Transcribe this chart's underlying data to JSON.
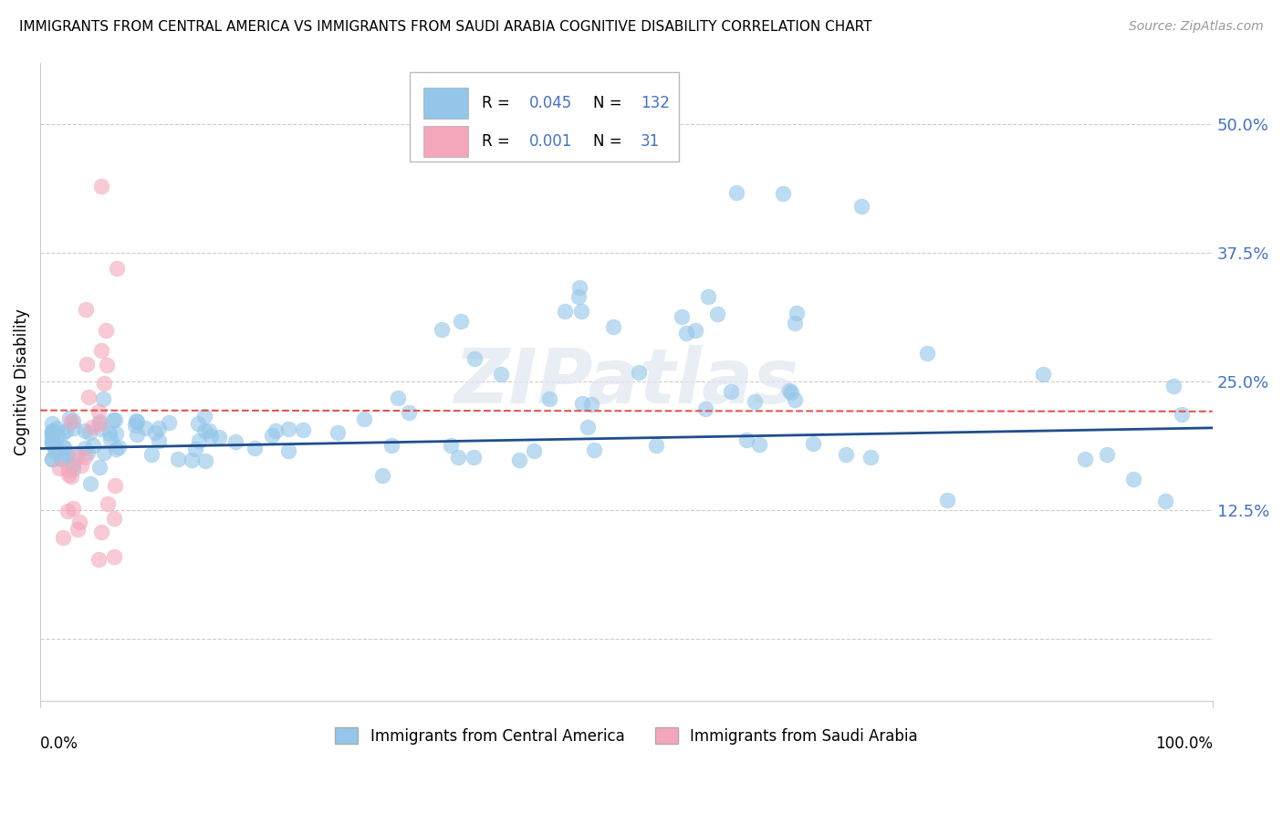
{
  "title": "IMMIGRANTS FROM CENTRAL AMERICA VS IMMIGRANTS FROM SAUDI ARABIA COGNITIVE DISABILITY CORRELATION CHART",
  "source": "Source: ZipAtlas.com",
  "ylabel": "Cognitive Disability",
  "y_ticks": [
    0.0,
    0.125,
    0.25,
    0.375,
    0.5
  ],
  "y_tick_labels": [
    "",
    "12.5%",
    "25.0%",
    "37.5%",
    "50.0%"
  ],
  "x_lim": [
    0.0,
    1.0
  ],
  "y_lim": [
    -0.06,
    0.56
  ],
  "r_blue": 0.045,
  "n_blue": 132,
  "r_pink": 0.001,
  "n_pink": 31,
  "blue_color": "#93c6e8",
  "pink_color": "#f4a7bb",
  "blue_line_color": "#1f4e8c",
  "pink_line_color": "#e05555",
  "legend_label_blue": "Immigrants from Central America",
  "legend_label_pink": "Immigrants from Saudi Arabia",
  "watermark": "ZIPatlas",
  "blue_trend_y_start": 0.185,
  "blue_trend_y_end": 0.205,
  "pink_trend_y_start": 0.222,
  "pink_trend_y_end": 0.221
}
